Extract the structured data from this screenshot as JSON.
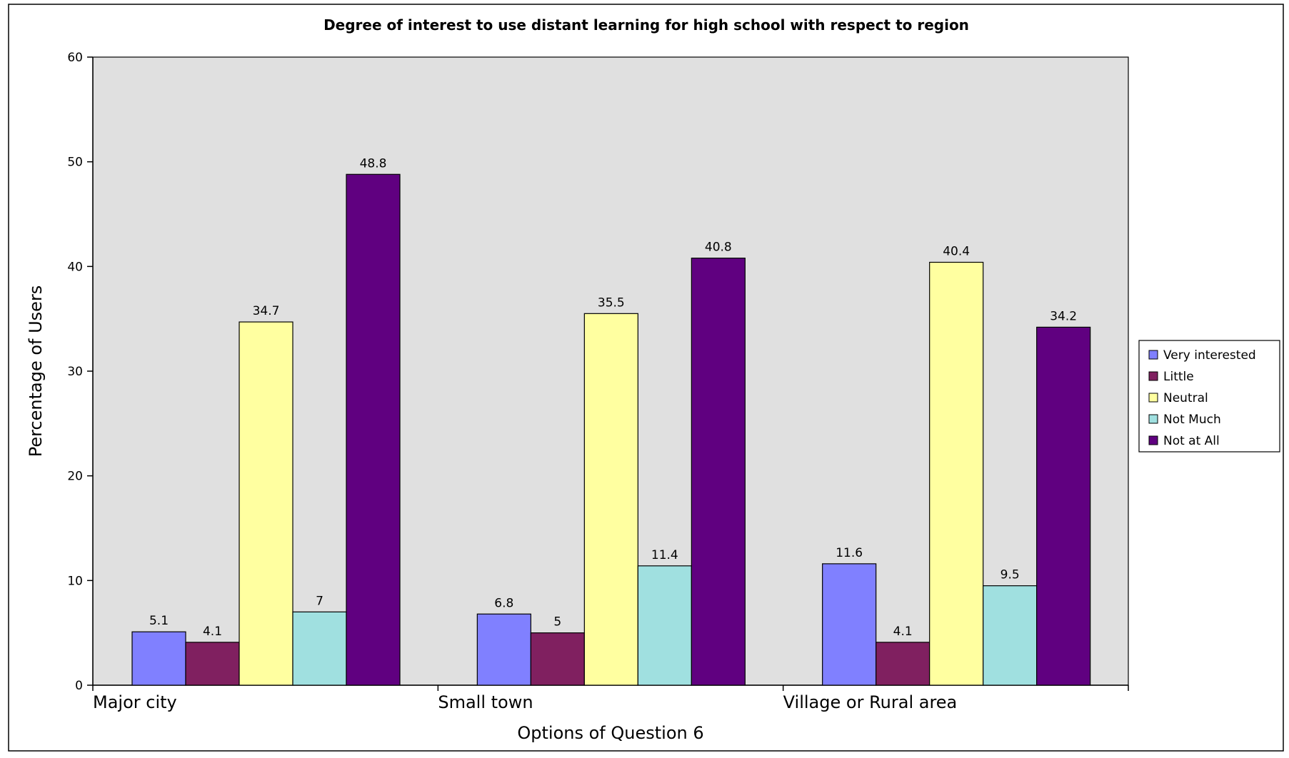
{
  "chart_data": {
    "type": "bar",
    "title": "Degree of interest to use distant learning for high school with respect to region",
    "xlabel": "Options of Question 6",
    "ylabel": "Percentage of Users",
    "categories": [
      "Major city",
      "Small town",
      "Village or Rural area"
    ],
    "ylim": [
      0,
      60
    ],
    "yticks": [
      0,
      10,
      20,
      30,
      40,
      50,
      60
    ],
    "grid": false,
    "legend_position": "right",
    "series": [
      {
        "name": "Very interested",
        "color": "#8080FF",
        "values": [
          5.1,
          6.8,
          11.6
        ],
        "labels": [
          "5.1",
          "6.8",
          "11.6"
        ]
      },
      {
        "name": "Little",
        "color": "#802060",
        "values": [
          4.1,
          5,
          4.1
        ],
        "labels": [
          "4.1",
          "5",
          "4.1"
        ]
      },
      {
        "name": "Neutral",
        "color": "#FFFFA0",
        "values": [
          34.7,
          35.5,
          40.4
        ],
        "labels": [
          "34.7",
          "35.5",
          "40.4"
        ]
      },
      {
        "name": "Not Much",
        "color": "#A0E0E0",
        "values": [
          7,
          11.4,
          9.5
        ],
        "labels": [
          "7",
          "11.4",
          "9.5"
        ]
      },
      {
        "name": "Not at All",
        "color": "#600080",
        "values": [
          48.8,
          40.8,
          34.2
        ],
        "labels": [
          "48.8",
          "40.8",
          "34.2"
        ]
      }
    ],
    "plot_background": "#E0E0E0"
  }
}
